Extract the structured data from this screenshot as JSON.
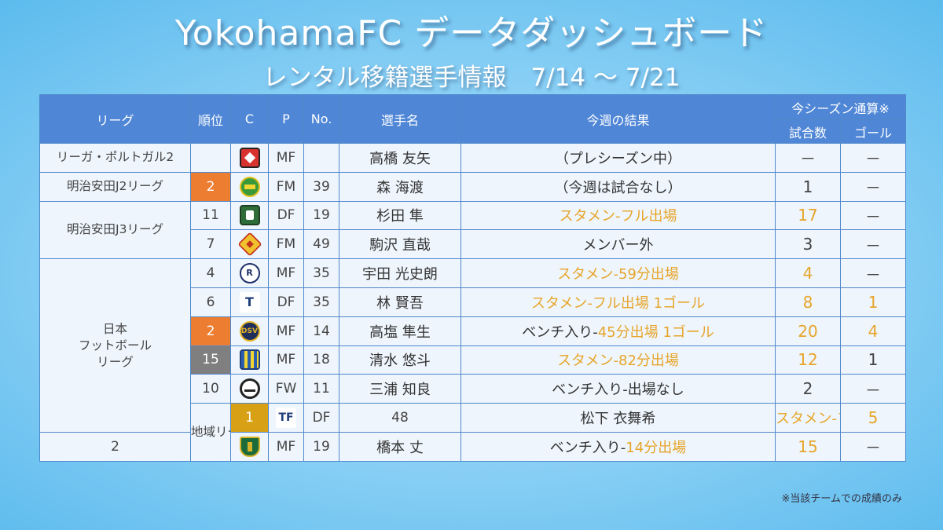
{
  "header": {
    "title": "YokohamaFC データダッシュボード",
    "subtitle": "レンタル移籍選手情報　7/14 ～ 7/21"
  },
  "columns": {
    "league": "リーグ",
    "rank": "順位",
    "club": "C",
    "position": "P",
    "number": "No.",
    "player": "選手名",
    "result": "今週の結果",
    "season_group": "今シーズン通算※",
    "apps": "試合数",
    "goals": "ゴール"
  },
  "leagues": [
    "リーガ・ポルトガル2",
    "明治安田J2リーグ",
    "明治安田J3リーグ",
    "日本\nフットボール\nリーグ",
    "地域リーグ"
  ],
  "rows": [
    {
      "rank": "",
      "crest": "shield-red-crest",
      "pos": "MF",
      "no": "",
      "name": "高橋 友矢",
      "result_pre": "（プレシーズン中）",
      "result_hl": "",
      "apps": "－",
      "goals": "－"
    },
    {
      "rank": "2",
      "crest": "green-yellow-crest",
      "pos": "FM",
      "no": "39",
      "name": "森 海渡",
      "result_pre": "（今週は試合なし）",
      "result_hl": "",
      "apps": "1",
      "goals": "－"
    },
    {
      "rank": "11",
      "crest": "green-shield-crest",
      "pos": "DF",
      "no": "19",
      "name": "杉田 隼",
      "result_pre": "",
      "result_hl": "スタメン-フル出場",
      "apps": "17",
      "goals": "－"
    },
    {
      "rank": "7",
      "crest": "red-yellow-crest",
      "pos": "FM",
      "no": "49",
      "name": "駒沢 直哉",
      "result_pre": "メンバー外",
      "result_hl": "",
      "apps": "3",
      "goals": "－"
    },
    {
      "rank": "4",
      "crest": "navy-r-crest",
      "pos": "MF",
      "no": "35",
      "name": "宇田 光史朗",
      "result_pre": "",
      "result_hl": "スタメン-59分出場",
      "apps": "4",
      "goals": "－"
    },
    {
      "rank": "6",
      "crest": "tiamo-crest",
      "pos": "DF",
      "no": "35",
      "name": "林 賢吾",
      "result_pre": "",
      "result_hl": "スタメン-フル出場 1ゴール",
      "apps": "8",
      "goals": "1"
    },
    {
      "rank": "2",
      "crest": "navy-gold-crest",
      "pos": "MF",
      "no": "14",
      "name": "高塩 隼生",
      "result_pre": "ベンチ入り-",
      "result_hl": "45分出場 1ゴール",
      "apps": "20",
      "goals": "4"
    },
    {
      "rank": "15",
      "crest": "blue-stripe-crest",
      "pos": "MF",
      "no": "18",
      "name": "清水 悠斗",
      "result_pre": "",
      "result_hl": "スタメン-82分出場",
      "apps": "12",
      "goals": "1"
    },
    {
      "rank": "10",
      "crest": "black-white-crest",
      "pos": "FW",
      "no": "11",
      "name": "三浦 知良",
      "result_pre": "ベンチ入り-出場なし",
      "result_hl": "",
      "apps": "2",
      "goals": "－"
    },
    {
      "rank": "1",
      "crest": "tf-crest",
      "pos": "DF",
      "no": "48",
      "name": "松下 衣舞希",
      "result_pre": "",
      "result_hl": "スタメン-フル出場",
      "apps": "5",
      "goals": "－"
    },
    {
      "rank": "2",
      "crest": "green-gold-shield-crest",
      "pos": "MF",
      "no": "19",
      "name": "橋本 丈",
      "result_pre": "ベンチ入り-",
      "result_hl": "14分出場",
      "apps": "15",
      "goals": "－"
    }
  ],
  "footnote": "※当該チームでの成績のみ",
  "colors": {
    "header_bg": "#4f86d6",
    "highlight": "#e7a52a",
    "rank_orange": "#ed7d31",
    "rank_gray": "#7f7f7f",
    "rank_gold": "#d7a015"
  }
}
